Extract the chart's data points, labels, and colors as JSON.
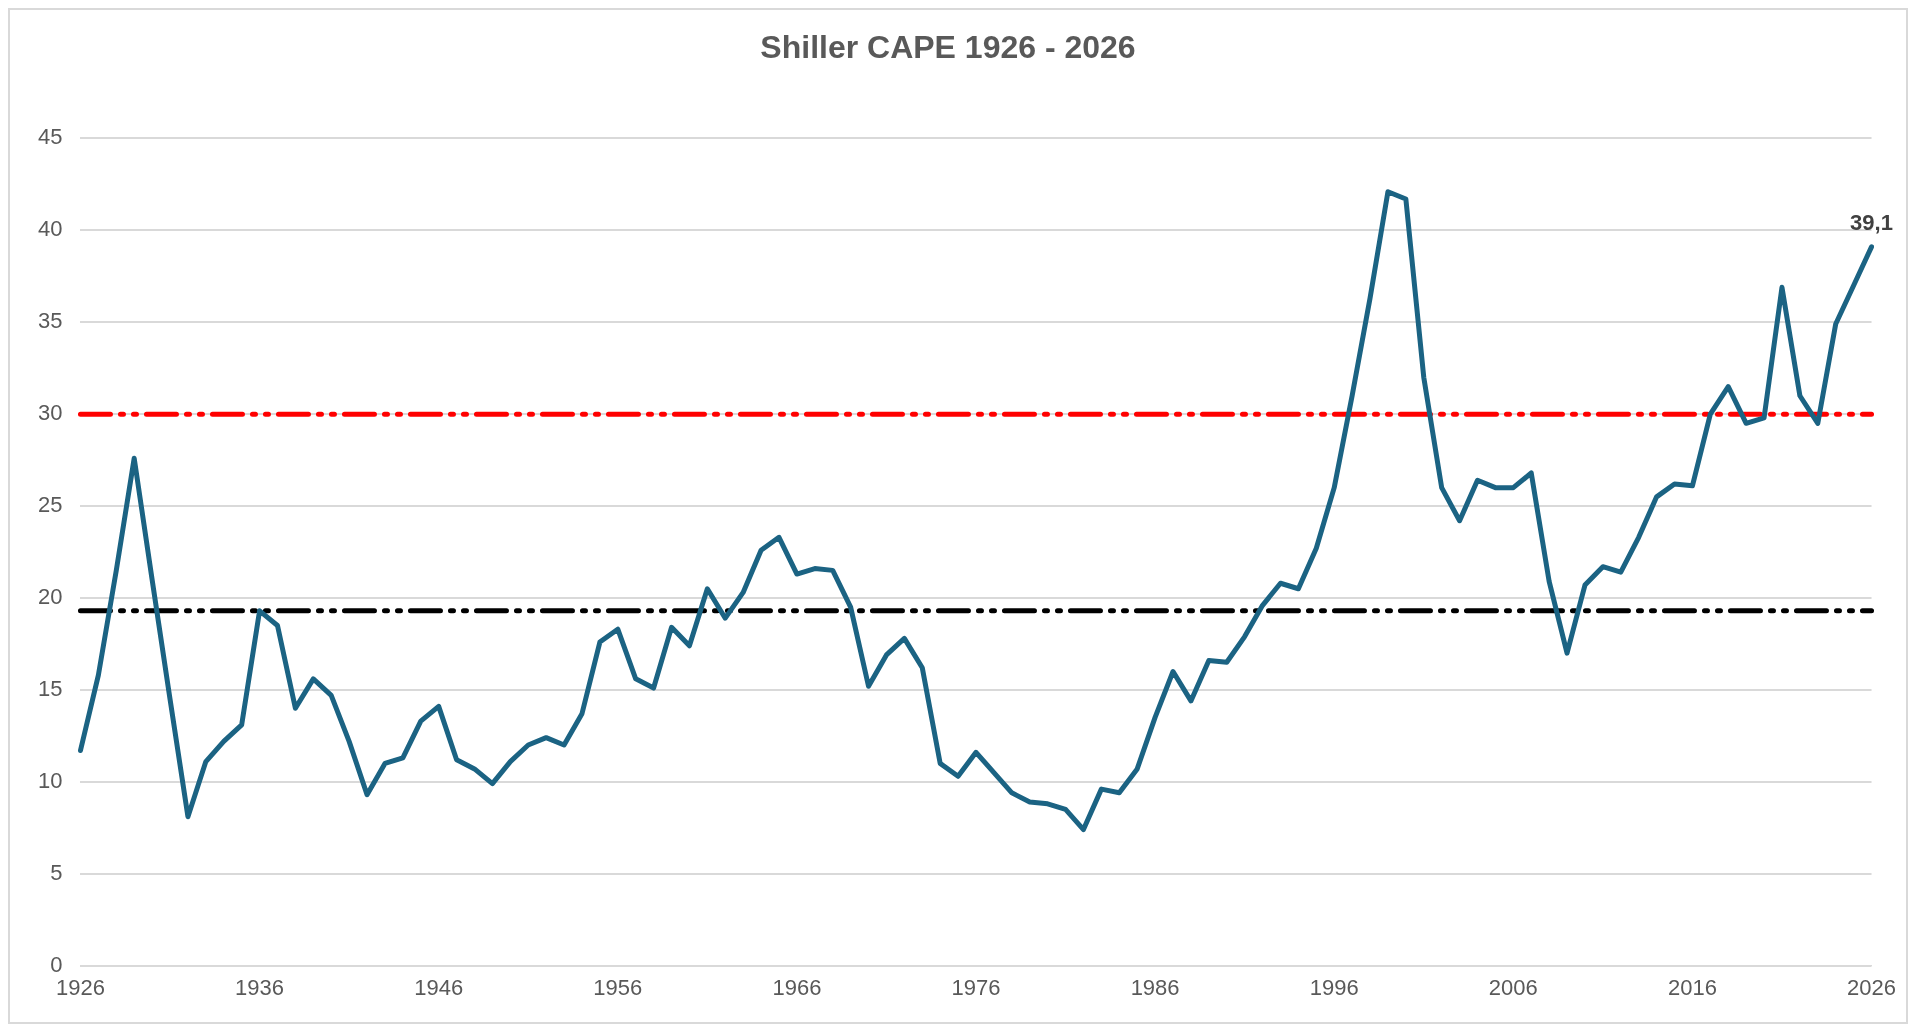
{
  "chart_data": {
    "type": "line",
    "title": "Shiller CAPE 1926 - 2026",
    "categories": [
      "1926",
      null,
      null,
      null,
      null,
      null,
      null,
      null,
      null,
      null,
      "1936",
      null,
      null,
      null,
      null,
      null,
      null,
      null,
      null,
      null,
      "1946",
      null,
      null,
      null,
      null,
      null,
      null,
      null,
      null,
      null,
      "1956",
      null,
      null,
      null,
      null,
      null,
      null,
      null,
      null,
      null,
      "1966",
      null,
      null,
      null,
      null,
      null,
      null,
      null,
      null,
      null,
      "1976",
      null,
      null,
      null,
      null,
      null,
      null,
      null,
      null,
      null,
      "1986",
      null,
      null,
      null,
      null,
      null,
      null,
      null,
      null,
      null,
      "1996",
      null,
      null,
      null,
      null,
      null,
      null,
      null,
      null,
      null,
      "2006",
      null,
      null,
      null,
      null,
      null,
      null,
      null,
      null,
      null,
      "2016",
      null,
      null,
      null,
      null,
      null,
      null,
      null,
      null,
      null,
      "2026"
    ],
    "series": [
      {
        "color": "#1b6383",
        "values": [
          11.7,
          15.8,
          21.5,
          27.6,
          21.0,
          14.5,
          8.1,
          11.1,
          12.2,
          13.1,
          19.3,
          18.5,
          14.0,
          15.6,
          14.7,
          12.2,
          9.3,
          11.0,
          11.3,
          13.3,
          14.1,
          11.2,
          10.7,
          9.9,
          11.1,
          12.0,
          12.4,
          12.0,
          13.7,
          17.6,
          18.3,
          15.6,
          15.1,
          18.4,
          17.4,
          20.5,
          18.9,
          20.3,
          22.6,
          23.3,
          21.3,
          21.6,
          21.5,
          19.5,
          15.2,
          16.9,
          17.8,
          16.2,
          11.0,
          10.3,
          11.6,
          10.5,
          9.4,
          8.9,
          8.8,
          8.5,
          7.4,
          9.6,
          9.4,
          10.7,
          13.5,
          16.0,
          14.4,
          16.6,
          16.5,
          17.9,
          19.6,
          20.8,
          20.5,
          22.7,
          26.0,
          31.0,
          36.3,
          42.1,
          41.7,
          32.0,
          26.0,
          24.2,
          26.4,
          26.0,
          26.0,
          26.8,
          20.9,
          17.0,
          20.7,
          21.7,
          21.4,
          23.3,
          25.5,
          26.2,
          26.1,
          30.0,
          31.5,
          29.5,
          29.8,
          36.9,
          31.0,
          29.5,
          34.9,
          37.0,
          39.1
        ],
        "value_labels": [
          null,
          null,
          null,
          null,
          null,
          null,
          null,
          null,
          null,
          null,
          null,
          null,
          null,
          null,
          null,
          null,
          null,
          null,
          null,
          null,
          null,
          null,
          null,
          null,
          null,
          null,
          null,
          null,
          null,
          null,
          null,
          null,
          null,
          null,
          null,
          null,
          null,
          null,
          null,
          null,
          null,
          null,
          null,
          null,
          null,
          null,
          null,
          null,
          null,
          null,
          null,
          null,
          null,
          null,
          null,
          null,
          null,
          null,
          null,
          null,
          null,
          null,
          null,
          null,
          null,
          null,
          null,
          null,
          null,
          null,
          null,
          null,
          null,
          null,
          null,
          null,
          null,
          null,
          null,
          null,
          null,
          null,
          null,
          null,
          null,
          null,
          null,
          null,
          null,
          null,
          null,
          null,
          null,
          null,
          null,
          null,
          null,
          null,
          null,
          null,
          "39,1"
        ]
      }
    ],
    "ylim": [
      0,
      45
    ],
    "yticks": [
      0,
      5,
      10,
      15,
      20,
      25,
      30,
      35,
      40,
      45
    ],
    "ref_lines": [
      {
        "axis": "y",
        "value": 30,
        "color": "#ff0000",
        "line_style": "dashed"
      },
      {
        "axis": "y",
        "value": 19.3,
        "color": "#000000",
        "line_style": "dashed"
      }
    ],
    "grid": "y",
    "legend": false,
    "marker": "none",
    "line_style": "solid"
  }
}
